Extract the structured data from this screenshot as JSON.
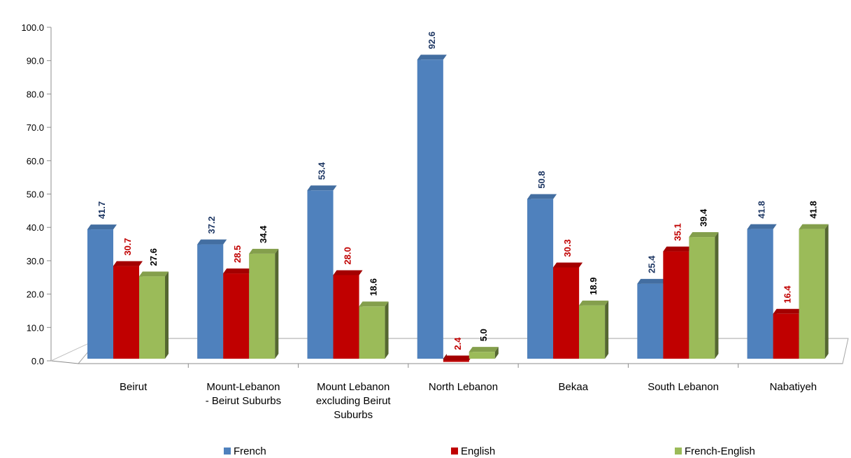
{
  "chart_data": {
    "type": "bar",
    "categories": [
      [
        "Beirut"
      ],
      [
        "Mount-Lebanon",
        "- Beirut Suburbs"
      ],
      [
        "Mount Lebanon",
        "excluding Beirut",
        "Suburbs"
      ],
      [
        "North Lebanon"
      ],
      [
        "Bekaa"
      ],
      [
        "South Lebanon"
      ],
      [
        "Nabatiyeh"
      ]
    ],
    "series": [
      {
        "name": "French",
        "values": [
          41.7,
          37.2,
          53.4,
          92.6,
          50.8,
          25.4,
          41.8
        ],
        "color": "#4F81BD",
        "label_color": "#1F3864"
      },
      {
        "name": "English",
        "values": [
          30.7,
          28.5,
          28.0,
          2.4,
          30.3,
          35.1,
          16.4
        ],
        "color": "#C00000",
        "label_color": "#C00000"
      },
      {
        "name": "French-English",
        "values": [
          27.6,
          34.4,
          18.6,
          5.0,
          18.9,
          39.4,
          41.8
        ],
        "color": "#9BBB59",
        "label_color": "#000000"
      }
    ],
    "yticks": [
      "0.0",
      "10.0",
      "20.0",
      "30.0",
      "40.0",
      "50.0",
      "60.0",
      "70.0",
      "80.0",
      "90.0",
      "100.0"
    ],
    "ylim": [
      0,
      100
    ],
    "grid": false,
    "legend_position": "bottom",
    "title": "",
    "xlabel": "",
    "ylabel": ""
  }
}
